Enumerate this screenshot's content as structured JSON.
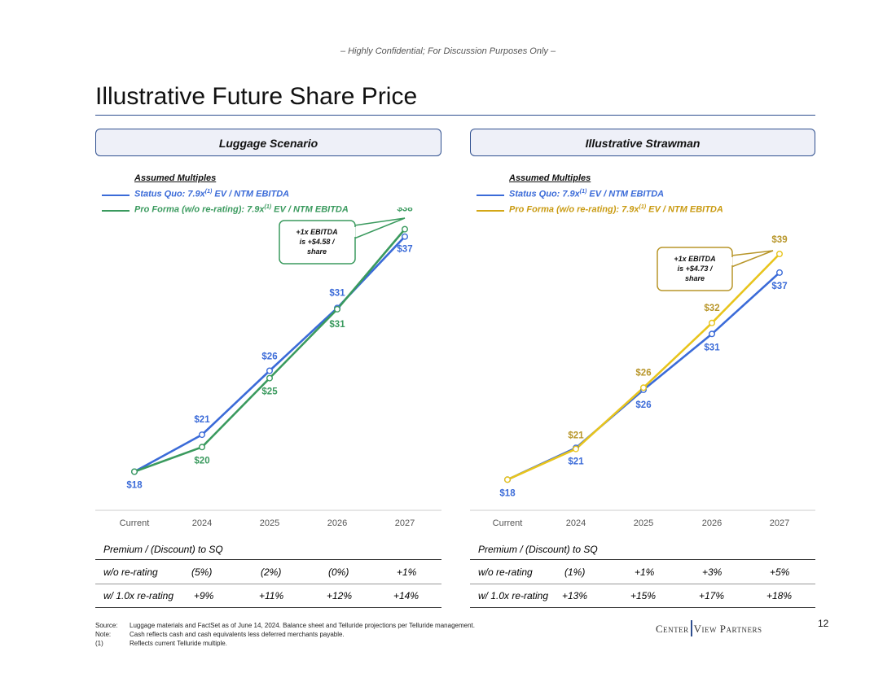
{
  "header": {
    "confidential": "– Highly Confidential; For Discussion Purposes Only –",
    "title": "Illustrative Future Share Price"
  },
  "colors": {
    "status_quo": "#3b6bd8",
    "pro_forma_left": "#3a9a5e",
    "pro_forma_right": "#e8c41c",
    "label_right_pf": "#b8962a",
    "rule": "#2f4f8f"
  },
  "panels": [
    {
      "heading": "Luggage Scenario",
      "assumed_title": "Assumed Multiples",
      "legend": [
        {
          "label_main": "Status Quo: 7.9x",
          "sup": "(1)",
          "label_rest": " EV / NTM EBITDA"
        },
        {
          "label_main": "Pro Forma (w/o re-rating): 7.9x",
          "sup": "(1)",
          "label_rest": " EV / NTM EBITDA"
        }
      ],
      "callout": [
        "+1x EBITDA",
        "is +$4.58 /",
        "share"
      ],
      "premium_title": "Premium / (Discount) to SQ",
      "premium_rows": [
        {
          "label": "w/o re-rating",
          "values": [
            "(5%)",
            "(2%)",
            "(0%)",
            "+1%"
          ]
        },
        {
          "label": "w/ 1.0x re-rating",
          "values": [
            "+9%",
            "+11%",
            "+12%",
            "+14%"
          ]
        }
      ]
    },
    {
      "heading": "Illustrative Strawman",
      "assumed_title": "Assumed Multiples",
      "legend": [
        {
          "label_main": "Status Quo: 7.9x",
          "sup": "(1)",
          "label_rest": " EV / NTM EBITDA"
        },
        {
          "label_main": "Pro Forma (w/o re-rating): 7.9x",
          "sup": "(1)",
          "label_rest": " EV / NTM EBITDA"
        }
      ],
      "callout": [
        "+1x EBITDA",
        "is +$4.73 /",
        "share"
      ],
      "premium_title": "Premium / (Discount) to SQ",
      "premium_rows": [
        {
          "label": "w/o re-rating",
          "values": [
            "(1%)",
            "+1%",
            "+3%",
            "+5%"
          ]
        },
        {
          "label": "w/ 1.0x re-rating",
          "values": [
            "+13%",
            "+15%",
            "+17%",
            "+18%"
          ]
        }
      ]
    }
  ],
  "chart_data": [
    {
      "type": "line",
      "title": "Luggage Scenario",
      "categories": [
        "Current",
        "2024",
        "2025",
        "2026",
        "2027"
      ],
      "ylim": [
        18,
        38.5
      ],
      "series": [
        {
          "name": "Status Quo",
          "values": [
            17.9,
            20.9,
            26.1,
            31.2,
            37.0
          ],
          "labels": [
            "$18",
            "$21",
            "$26",
            "$31",
            "$37"
          ]
        },
        {
          "name": "Pro Forma (w/o re-rating)",
          "values": [
            17.9,
            19.9,
            25.5,
            31.1,
            37.6
          ],
          "labels": [
            "",
            "$20",
            "$25",
            "$31",
            "$38"
          ]
        }
      ],
      "grid": false
    },
    {
      "type": "line",
      "title": "Illustrative Strawman",
      "categories": [
        "Current",
        "2024",
        "2025",
        "2026",
        "2027"
      ],
      "ylim": [
        18,
        38.5
      ],
      "series": [
        {
          "name": "Status Quo",
          "values": [
            17.9,
            20.8,
            26.1,
            31.2,
            36.8
          ],
          "labels": [
            "$18",
            "$21",
            "$26",
            "$31",
            "$37"
          ]
        },
        {
          "name": "Pro Forma (w/o re-rating)",
          "values": [
            17.9,
            20.7,
            26.3,
            32.2,
            38.5
          ],
          "labels": [
            "",
            "$21",
            "$26",
            "$32",
            "$39"
          ]
        }
      ],
      "grid": false
    }
  ],
  "footnotes": [
    {
      "key": "Source:",
      "text": "Luggage materials and FactSet as of June 14, 2024. Balance sheet and Telluride projections per Telluride management."
    },
    {
      "key": "Note:",
      "text": "Cash reflects cash and cash equivalents less deferred merchants payable."
    },
    {
      "key": "(1)",
      "text": "Reflects current Telluride multiple."
    }
  ],
  "logo": {
    "left": "Center",
    "right": "View Partners"
  },
  "page_number": "12"
}
